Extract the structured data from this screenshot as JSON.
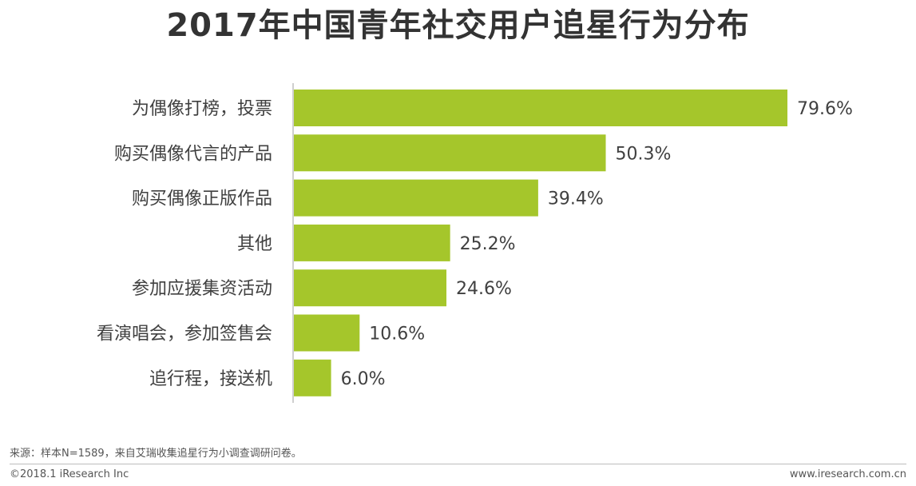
{
  "footer": {
    "source": "来源：样本N=1589，来自艾瑞收集追星行为小调查调研问卷。",
    "copyright": "©2018.1 iResearch Inc",
    "website": "www.iresearch.com.cn"
  },
  "colors": {
    "bar": "#a5c62b",
    "axis": "#bfbfbf"
  },
  "chart_data": {
    "type": "bar",
    "orientation": "horizontal",
    "title": "2017年中国青年社交用户追星行为分布",
    "categories": [
      "为偶像打榜，投票",
      "购买偶像代言的产品",
      "购买偶像正版作品",
      "其他",
      "参加应援集资活动",
      "看演唱会，参加签售会",
      "追行程，接送机"
    ],
    "values": [
      79.6,
      50.3,
      39.4,
      25.2,
      24.6,
      10.6,
      6.0
    ],
    "value_labels": [
      "79.6%",
      "50.3%",
      "39.4%",
      "25.2%",
      "24.6%",
      "10.6%",
      "6.0%"
    ],
    "unit": "%",
    "xlim": [
      0,
      100
    ],
    "grid": false,
    "legend": "none"
  }
}
